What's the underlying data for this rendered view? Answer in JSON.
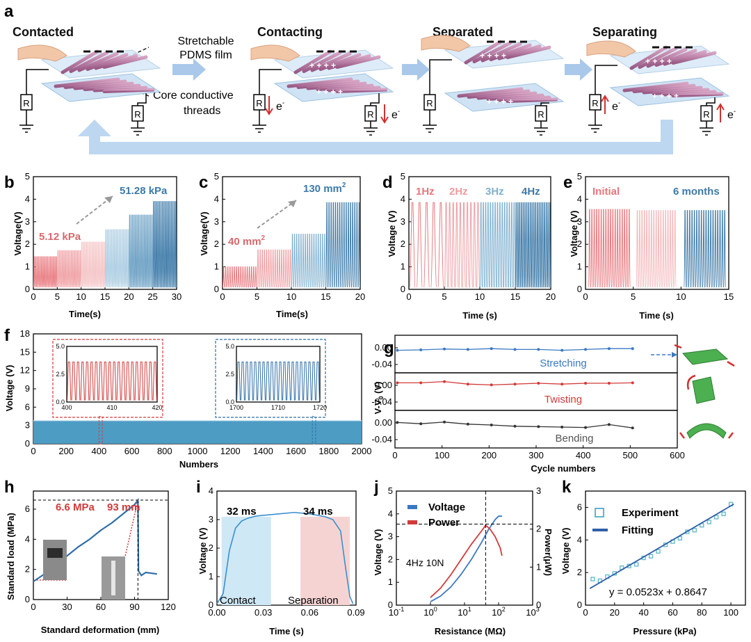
{
  "panels": {
    "a": {
      "letter": "a",
      "stage1": "Contacted",
      "stage2": "Contacting",
      "stage3": "Separated",
      "stage4": "Separating",
      "film_label_1": "Stretchable",
      "film_label_2": "PDMS film",
      "thread_label_1": "Core conductive",
      "thread_label_2": "threads",
      "resistor": "R",
      "electron": "e",
      "electron_sup": "-"
    },
    "b": {
      "letter": "b",
      "ylabel": "Voltage(V)",
      "xlabel": "Time(s)",
      "low": "5.12 kPa",
      "high": "51.28 kPa"
    },
    "c": {
      "letter": "c",
      "ylabel": "Voltage(V)",
      "xlabel": "Time(s)",
      "low": "40 mm",
      "high": "130 mm",
      "sup": "2"
    },
    "d": {
      "letter": "d",
      "ylabel": "Voltage (V)",
      "xlabel": "Time (s)",
      "f1": "1Hz",
      "f2": "2Hz",
      "f3": "3Hz",
      "f4": "4Hz"
    },
    "e": {
      "letter": "e",
      "ylabel": "Voltage (V)",
      "xlabel": "Time (s)",
      "l1": "Initial",
      "l2": "6 months"
    },
    "f": {
      "letter": "f",
      "ylabel": "Voltage (V)",
      "xlabel": "Numbers"
    },
    "g": {
      "letter": "g",
      "ylabel": "V-V₀ (V)",
      "ylabel_main": "V-V",
      "ylabel_sub": "0",
      "ylabel_unit": " (V)",
      "xlabel": "Cycle numbers",
      "s1": "Stretching",
      "s2": "Twisting",
      "s3": "Bending"
    },
    "h": {
      "letter": "h",
      "ylabel": "Standard load (MPa)",
      "xlabel": "Standard deformation (mm)",
      "anno1": "6.6 MPa",
      "anno2": "93 mm"
    },
    "i": {
      "letter": "i",
      "ylabel": "Voltage (V)",
      "xlabel": "Time (s)",
      "t1": "32 ms",
      "t2": "34 ms",
      "contact": "Contact",
      "separation": "Separation"
    },
    "j": {
      "letter": "j",
      "ylabel": "Voltage (V)",
      "ylabel2": "Power(μW)",
      "xlabel": "Resistance (MΩ)",
      "leg1": "Voltage",
      "leg2": "Power",
      "cond": "4Hz  10N"
    },
    "k": {
      "letter": "k",
      "ylabel": "Voltage (V)",
      "xlabel": "Pressure (kPa)",
      "leg1": "Experiment",
      "leg2": "Fitting",
      "eq": "y = 0.0523x + 0.8647"
    }
  },
  "chart_data": [
    {
      "panel": "b",
      "type": "line",
      "title": "",
      "xlabel": "Time(s)",
      "ylabel": "Voltage(V)",
      "xlim": [
        0,
        30
      ],
      "ylim": [
        0,
        5
      ],
      "xticks": [
        0,
        5,
        10,
        15,
        20,
        25,
        30
      ],
      "yticks": [
        0,
        1,
        2,
        3,
        4,
        5
      ],
      "segments": [
        {
          "t": [
            0,
            5
          ],
          "v": 1.45,
          "color": "#e8767c"
        },
        {
          "t": [
            5,
            10
          ],
          "v": 1.72,
          "color": "#ee9ca0"
        },
        {
          "t": [
            10,
            15
          ],
          "v": 2.1,
          "color": "#f4c1c3"
        },
        {
          "t": [
            15,
            20
          ],
          "v": 2.65,
          "color": "#a9cbe0"
        },
        {
          "t": [
            20,
            25
          ],
          "v": 3.3,
          "color": "#6a9fc3"
        },
        {
          "t": [
            25,
            30
          ],
          "v": 3.9,
          "color": "#3d7aa8"
        }
      ]
    },
    {
      "panel": "c",
      "type": "line",
      "title": "",
      "xlabel": "Time(s)",
      "ylabel": "Voltage(V)",
      "xlim": [
        0,
        20
      ],
      "ylim": [
        0,
        5
      ],
      "xticks": [
        0,
        5,
        10,
        15,
        20
      ],
      "yticks": [
        0,
        1,
        2,
        3,
        4,
        5
      ],
      "segments": [
        {
          "t": [
            0,
            5
          ],
          "v": 1.0,
          "color": "#e8767c"
        },
        {
          "t": [
            5,
            10
          ],
          "v": 1.75,
          "color": "#ee9ca0"
        },
        {
          "t": [
            10,
            15
          ],
          "v": 2.45,
          "color": "#7fb0cf"
        },
        {
          "t": [
            15,
            20
          ],
          "v": 3.85,
          "color": "#3d7aa8"
        }
      ]
    },
    {
      "panel": "d",
      "type": "line",
      "title": "",
      "xlabel": "Time (s)",
      "ylabel": "Voltage (V)",
      "xlim": [
        0,
        20
      ],
      "ylim": [
        0,
        5
      ],
      "xticks": [
        0,
        5,
        10,
        15,
        20
      ],
      "yticks": [
        0,
        1,
        2,
        3,
        4,
        5
      ],
      "segments": [
        {
          "t": [
            0,
            5
          ],
          "v": 3.85,
          "hz": 1,
          "color": "#e8767c"
        },
        {
          "t": [
            5,
            10
          ],
          "v": 3.85,
          "hz": 2,
          "color": "#ee9ca0"
        },
        {
          "t": [
            10,
            15
          ],
          "v": 3.85,
          "hz": 3,
          "color": "#7fb0cf"
        },
        {
          "t": [
            15,
            20
          ],
          "v": 3.85,
          "hz": 4,
          "color": "#3d7aa8"
        }
      ]
    },
    {
      "panel": "e",
      "type": "line",
      "title": "",
      "xlabel": "Time (s)",
      "ylabel": "Voltage (V)",
      "xlim": [
        0,
        15
      ],
      "ylim": [
        0,
        5
      ],
      "xticks": [
        0,
        5,
        10,
        15
      ],
      "yticks": [
        0,
        1,
        2,
        3,
        4,
        5
      ],
      "segments": [
        {
          "t": [
            0.3,
            4.7
          ],
          "v": 3.55,
          "color": "#e8767c"
        },
        {
          "t": [
            5.3,
            9.5
          ],
          "v": 3.5,
          "color": "#f4b6b9"
        },
        {
          "t": [
            10.3,
            14.7
          ],
          "v": 3.5,
          "color": "#3d7aa8"
        }
      ]
    },
    {
      "panel": "f",
      "type": "area",
      "title": "",
      "xlabel": "Numbers",
      "ylabel": "Voltage (V)",
      "xlim": [
        0,
        2000
      ],
      "ylim": [
        0,
        18
      ],
      "xticks": [
        0,
        200,
        400,
        600,
        800,
        1000,
        1200,
        1400,
        1600,
        1800,
        2000
      ],
      "yticks": [
        0,
        3,
        6,
        9,
        12,
        15,
        18
      ],
      "level": 3.8,
      "inset1": {
        "xlim": [
          400,
          420
        ],
        "ylim": [
          0,
          5
        ],
        "xticks": [
          400,
          410,
          420
        ],
        "yticks": [
          "0.0",
          "2.5",
          "5.0"
        ],
        "peak": 3.6
      },
      "inset2": {
        "xlim": [
          1700,
          1720
        ],
        "ylim": [
          0,
          5
        ],
        "xticks": [
          1700,
          1710,
          1720
        ],
        "yticks": [
          "0.0",
          "2.5",
          "5.0"
        ],
        "peak": 3.6
      }
    },
    {
      "panel": "g",
      "type": "line",
      "title": "",
      "xlabel": "Cycle numbers",
      "ylabel": "V-V0 (V)",
      "xlim": [
        0,
        600
      ],
      "ylim": [
        -0.06,
        0.03
      ],
      "xticks": [
        0,
        100,
        200,
        300,
        400,
        500,
        600
      ],
      "yticks": [
        "0.00",
        "-0.04"
      ],
      "x": [
        5,
        55,
        105,
        155,
        205,
        255,
        305,
        355,
        405,
        455,
        505
      ],
      "series": [
        {
          "name": "Stretching",
          "color": "#3a78c2",
          "values": [
            -0.006,
            -0.005,
            -0.003,
            -0.004,
            -0.002,
            -0.004,
            -0.004,
            -0.006,
            -0.004,
            -0.002,
            -0.002
          ]
        },
        {
          "name": "Twisting",
          "color": "#d23a3a",
          "values": [
            0.006,
            0.006,
            0.009,
            0.003,
            0.001,
            0.003,
            0.005,
            0.003,
            0.005,
            0.005,
            0.006
          ]
        },
        {
          "name": "Bending",
          "color": "#333333",
          "values": [
            0.001,
            -0.002,
            0.002,
            -0.003,
            -0.005,
            -0.008,
            -0.009,
            -0.01,
            -0.011,
            -0.004,
            -0.012
          ]
        }
      ]
    },
    {
      "panel": "h",
      "type": "line",
      "title": "",
      "xlabel": "Standard deformation (mm)",
      "ylabel": "Standard load (MPa)",
      "xlim": [
        0,
        120
      ],
      "ylim": [
        0,
        7.2
      ],
      "xticks": [
        0,
        30,
        60,
        90,
        120
      ],
      "yticks": [
        0,
        2,
        4,
        6
      ],
      "x": [
        0,
        10,
        20,
        30,
        40,
        50,
        60,
        70,
        80,
        90,
        93,
        93.5,
        96,
        100,
        110
      ],
      "y": [
        1.2,
        1.7,
        2.3,
        2.9,
        3.5,
        4.0,
        4.6,
        5.1,
        5.7,
        6.3,
        6.6,
        1.9,
        1.6,
        1.8,
        1.7
      ],
      "peak": [
        93,
        6.6
      ]
    },
    {
      "panel": "i",
      "type": "line",
      "title": "",
      "xlabel": "Time (s)",
      "ylabel": "Voltage (V)",
      "xlim": [
        0,
        0.09
      ],
      "ylim": [
        0,
        4
      ],
      "xticks": [
        "0.00",
        "0.03",
        "0.06",
        "0.09"
      ],
      "yticks": [
        0,
        1,
        2,
        3,
        4
      ],
      "x": [
        0.0,
        0.004,
        0.008,
        0.012,
        0.016,
        0.02,
        0.025,
        0.03,
        0.04,
        0.05,
        0.06,
        0.07,
        0.075,
        0.08,
        0.083,
        0.086,
        0.088
      ],
      "y": [
        0.05,
        0.4,
        1.9,
        2.7,
        2.95,
        3.05,
        3.12,
        3.15,
        3.2,
        3.25,
        3.2,
        3.1,
        3.0,
        2.6,
        1.4,
        0.3,
        0.05
      ],
      "contact_band": [
        0.003,
        0.035
      ],
      "separation_band": [
        0.054,
        0.086
      ]
    },
    {
      "panel": "j",
      "type": "line",
      "title": "",
      "xlabel": "Resistance (MΩ)",
      "ylabel": "Voltage (V)",
      "ylabel2": "Power(μW)",
      "xlim_log10": [
        -1,
        3
      ],
      "ylim": [
        0,
        5
      ],
      "ylim2": [
        0,
        3
      ],
      "xticks": [
        "10-1",
        "100",
        "101",
        "102",
        "103"
      ],
      "yticks": [
        0,
        1,
        2,
        3,
        4,
        5
      ],
      "yticks2": [
        0,
        1,
        2,
        3
      ],
      "series": [
        {
          "name": "Voltage",
          "axis": "left",
          "color": "#3a78c2",
          "log10x": [
            0,
            0.3,
            0.6,
            0.9,
            1.2,
            1.5,
            1.7,
            1.9,
            2.0,
            2.1
          ],
          "values": [
            0.15,
            0.4,
            0.8,
            1.35,
            2.0,
            2.75,
            3.3,
            3.75,
            3.9,
            3.9
          ]
        },
        {
          "name": "Power",
          "axis": "right",
          "color": "#d23a3a",
          "log10x": [
            0,
            0.3,
            0.6,
            0.9,
            1.2,
            1.5,
            1.62,
            1.75,
            1.9,
            2.05,
            2.1
          ],
          "values": [
            0.2,
            0.45,
            0.8,
            1.2,
            1.6,
            1.95,
            2.1,
            2.0,
            1.8,
            1.5,
            1.3
          ]
        }
      ],
      "crosshair_log10x": 1.62,
      "crosshair_v": 3.55
    },
    {
      "panel": "k",
      "type": "scatter",
      "title": "",
      "xlabel": "Pressure (kPa)",
      "ylabel": "Voltage (V)",
      "xlim": [
        0,
        110
      ],
      "ylim": [
        0,
        7
      ],
      "xticks": [
        0,
        20,
        40,
        60,
        80,
        100
      ],
      "yticks": [
        0,
        2,
        4,
        6
      ],
      "x": [
        5,
        10,
        15,
        20,
        25,
        30,
        35,
        40,
        45,
        50,
        55,
        60,
        65,
        70,
        75,
        80,
        85,
        90,
        95,
        100
      ],
      "y": [
        1.6,
        1.5,
        1.75,
        1.95,
        2.3,
        2.4,
        2.5,
        2.9,
        3.0,
        3.3,
        3.7,
        3.9,
        4.1,
        4.5,
        4.6,
        4.9,
        5.1,
        5.4,
        5.6,
        6.2
      ],
      "fit": {
        "slope": 0.0523,
        "intercept": 0.8647
      }
    }
  ]
}
